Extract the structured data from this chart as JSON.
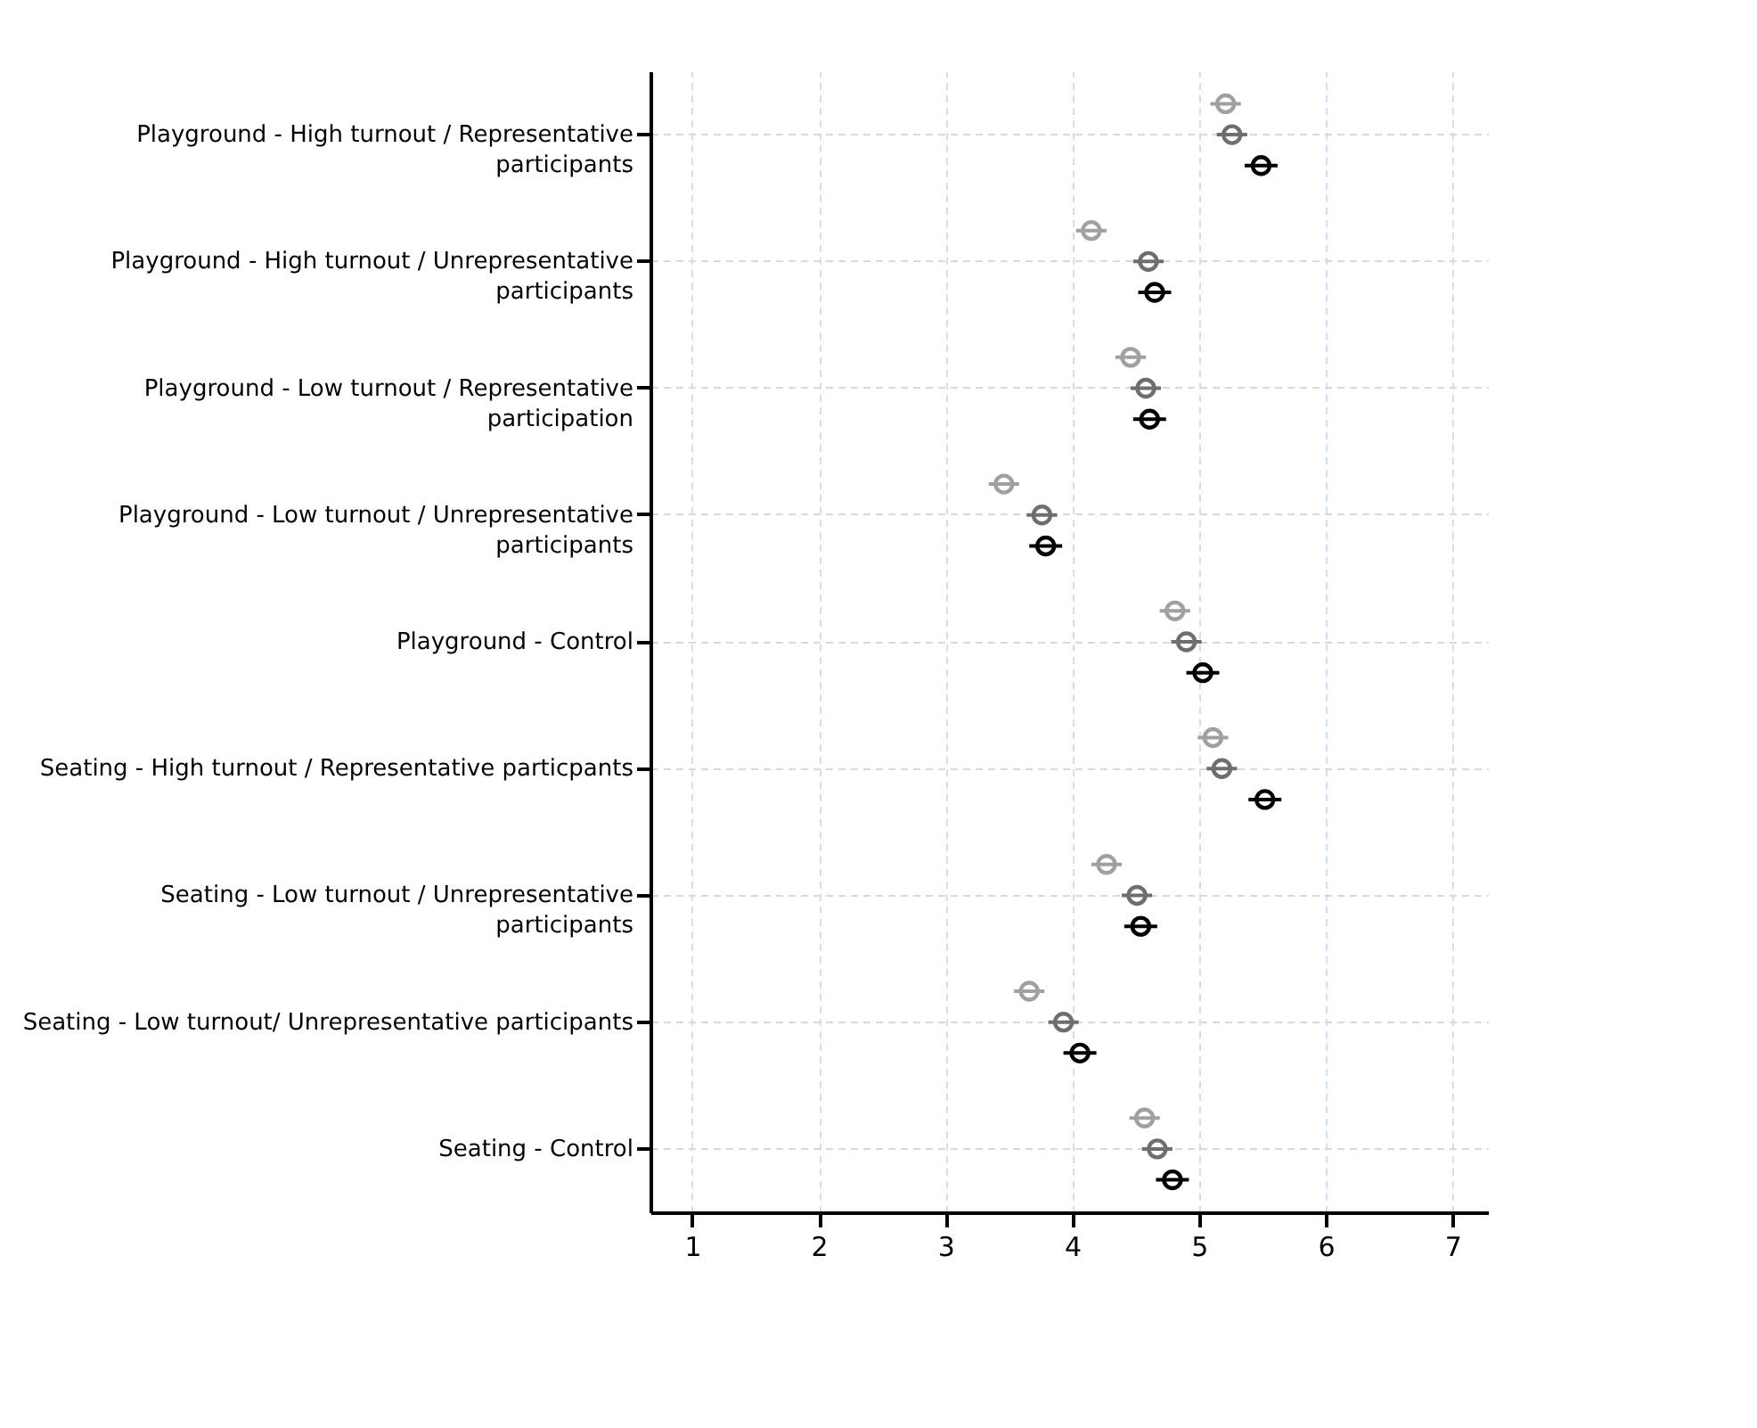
{
  "chart_data": {
    "type": "scatter",
    "orientation": "horizontal",
    "categories": [
      "Playground - High turnout / Representative participants",
      "Playground - High turnout / Unrepresentative participants",
      "Playground - Low turnout / Representative participation",
      "Playground - Low turnout / Unrepresentative participants",
      "Playground - Control",
      "Seating - High turnout / Representative particpants",
      "Seating - Low turnout / Unrepresentative participants",
      "Seating - Low turnout/ Unrepresentative participants",
      "Seating - Control"
    ],
    "series": [
      {
        "color": "#a0a0a0",
        "values": [
          5.21,
          4.15,
          4.46,
          3.46,
          4.81,
          5.11,
          4.27,
          3.66,
          4.57
        ],
        "errors": [
          0.12,
          0.12,
          0.12,
          0.12,
          0.12,
          0.12,
          0.12,
          0.12,
          0.12
        ]
      },
      {
        "color": "#6e6e6e",
        "values": [
          5.26,
          4.6,
          4.58,
          3.76,
          4.9,
          5.18,
          4.51,
          3.93,
          4.67
        ],
        "errors": [
          0.12,
          0.12,
          0.12,
          0.12,
          0.12,
          0.12,
          0.12,
          0.12,
          0.12
        ]
      },
      {
        "color": "#000000",
        "values": [
          5.49,
          4.65,
          4.61,
          3.79,
          5.03,
          5.52,
          4.54,
          4.06,
          4.79
        ],
        "errors": [
          0.13,
          0.13,
          0.13,
          0.13,
          0.13,
          0.13,
          0.13,
          0.13,
          0.13
        ]
      }
    ],
    "xlim": [
      0.67,
      7.28
    ],
    "xticks": [
      1,
      2,
      3,
      4,
      5,
      6,
      7
    ],
    "grid": true,
    "marker": "circle",
    "legend": false
  }
}
